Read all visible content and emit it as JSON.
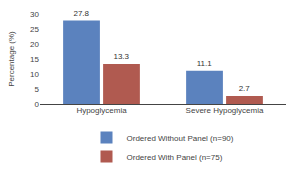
{
  "chart_data": {
    "type": "bar",
    "categories": [
      "Hypoglycemia",
      "Severe Hypoglycemia"
    ],
    "series": [
      {
        "name": "Ordered Without Panel (n=90)",
        "color": "#5b82be",
        "values": [
          27.8,
          11.1
        ]
      },
      {
        "name": "Ordered With Panel (n=75)",
        "color": "#b05a50",
        "values": [
          13.3,
          2.7
        ]
      }
    ],
    "y_label": "Percentage (%)",
    "ylim": [
      0,
      30
    ],
    "yticks": [
      0,
      5,
      10,
      15,
      20,
      25,
      30
    ],
    "grid": false,
    "legend": "bottom",
    "data_labels": true
  }
}
